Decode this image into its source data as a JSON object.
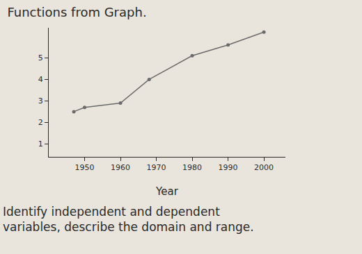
{
  "chart_data": {
    "type": "line",
    "title": "Functions from Graph.",
    "x_label": "Year",
    "x": [
      1947,
      1950,
      1960,
      1968,
      1980,
      1990,
      2000
    ],
    "values": [
      2.5,
      2.7,
      2.9,
      4.0,
      5.1,
      5.6,
      6.2
    ],
    "color": "#6b6b6b",
    "marker": "circle",
    "line_style": "solid",
    "xlim": [
      1940,
      2006
    ],
    "xticks": [
      1950,
      1960,
      1970,
      1980,
      1990,
      2000
    ],
    "ylim": [
      0.4,
      6.4
    ],
    "yticks": [
      1,
      2,
      3,
      4,
      5
    ],
    "grid": false,
    "annotations": [
      "Identify independent and dependent",
      "variables, describe the domain and range."
    ]
  }
}
